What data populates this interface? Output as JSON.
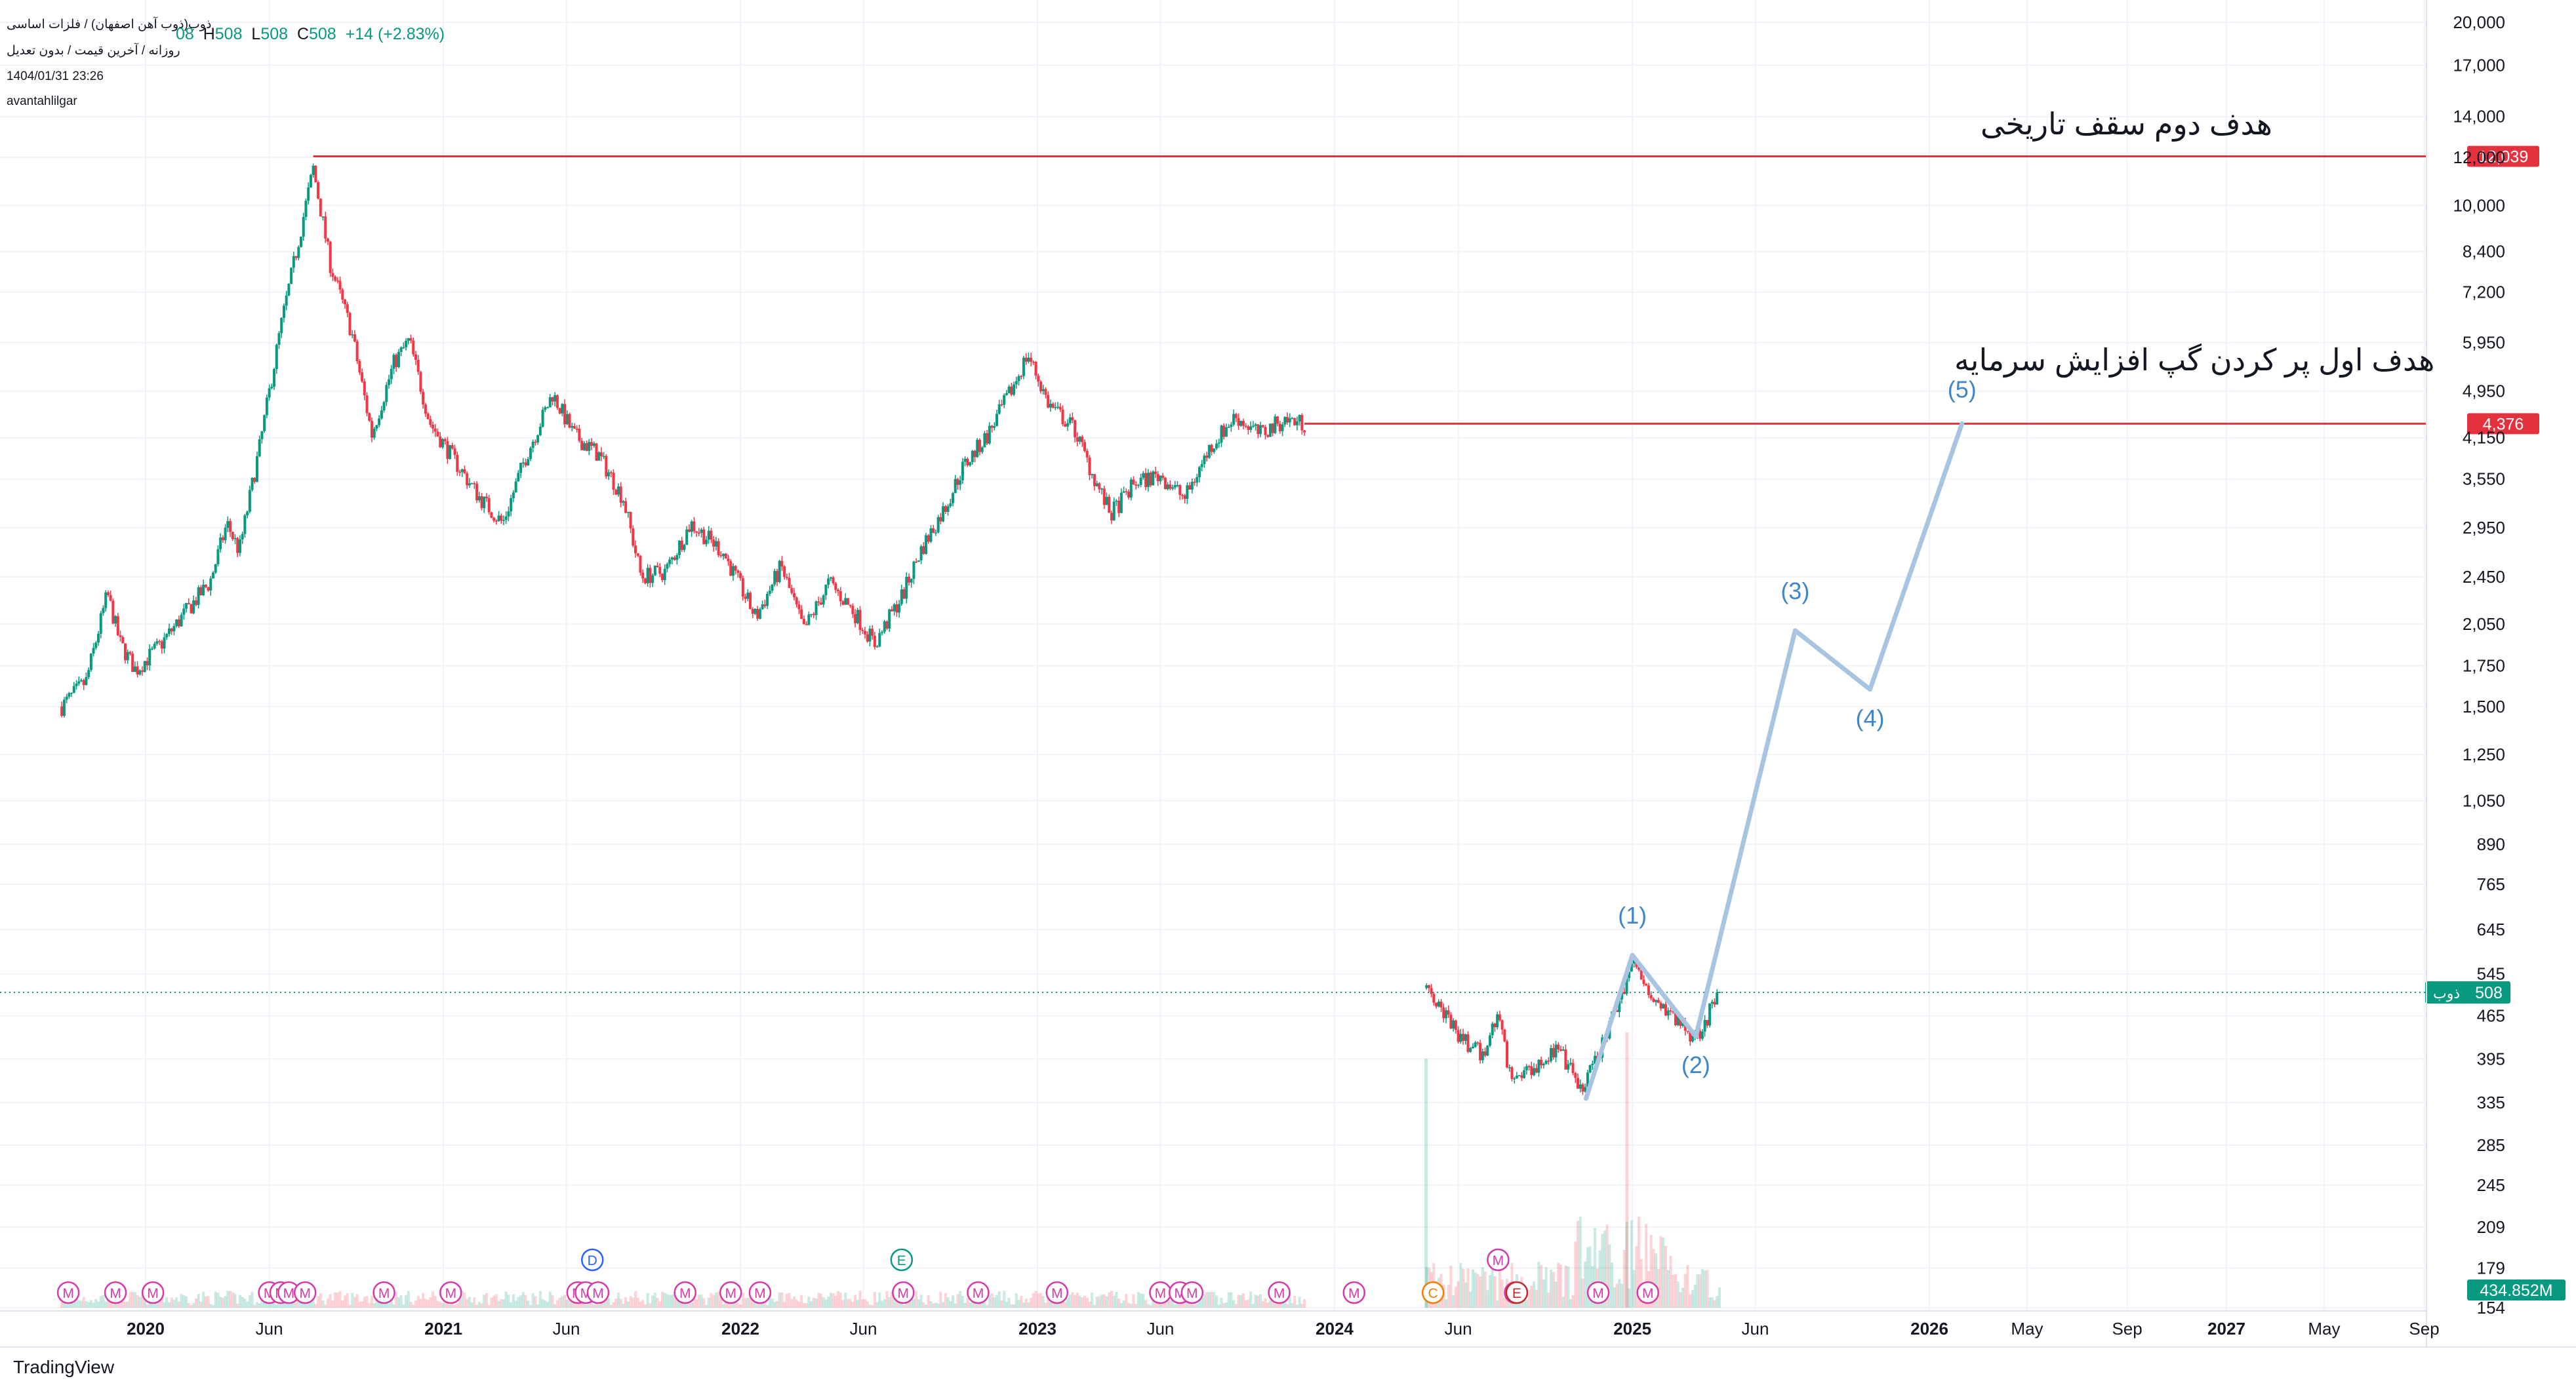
{
  "header": {
    "symbol_title": "ذوب(ذوب آهن اصفهان) / فلزات اساسی",
    "subtitle": "روزانه / آخرین قیمت / بدون تعدیل",
    "datetime": "1404/01/31 23:26",
    "author": "avantahlilgar",
    "ohlc": {
      "o_tail": "08",
      "h_label": "H",
      "h": "508",
      "l_label": "L",
      "l": "508",
      "c_label": "C",
      "c": "508",
      "change": "+14 (+2.83%)"
    }
  },
  "annotations": {
    "second_target": "هدف دوم سقف تاریخی",
    "first_target": "هدف اول پر کردن گپ افزایش سرمایه"
  },
  "branding": {
    "logo": "TradingView"
  },
  "colors": {
    "up": "#089981",
    "down": "#f23645",
    "target_line": "#e3323e",
    "wave": "#a7c5e0",
    "wave_text": "#3f86c8",
    "event_m": "#d63aa8"
  },
  "chart_data": {
    "type": "line",
    "scale": "log",
    "title": "",
    "x_ticks": [
      "2020",
      "Jun",
      "2021",
      "Jun",
      "2022",
      "Jun",
      "2023",
      "Jun",
      "2024",
      "Jun",
      "2025",
      "Jun",
      "2026",
      "May",
      "Sep",
      "2027",
      "May",
      "Sep"
    ],
    "y_ticks": [
      "20,000",
      "17,000",
      "14,000",
      "12,000",
      "10,000",
      "8,400",
      "7,200",
      "5,950",
      "4,950",
      "4,150",
      "3,550",
      "2,950",
      "2,450",
      "2,050",
      "1,750",
      "1,500",
      "1,250",
      "1,050",
      "890",
      "765",
      "645",
      "545",
      "465",
      "395",
      "335",
      "285",
      "245",
      "209",
      "179",
      "154"
    ],
    "ylim": [
      154,
      20000
    ],
    "price_series": {
      "name": "ذوب",
      "points": [
        [
          "2019-09-20",
          1500
        ],
        [
          "2019-10-20",
          1650
        ],
        [
          "2019-11-15",
          2300
        ],
        [
          "2019-12-01",
          1900
        ],
        [
          "2019-12-20",
          1720
        ],
        [
          "2020-01-20",
          1900
        ],
        [
          "2020-02-20",
          2150
        ],
        [
          "2020-03-20",
          2400
        ],
        [
          "2020-04-10",
          3000
        ],
        [
          "2020-04-25",
          2700
        ],
        [
          "2020-05-20",
          4000
        ],
        [
          "2020-06-15",
          6300
        ],
        [
          "2020-07-05",
          8500
        ],
        [
          "2020-07-25",
          11500
        ],
        [
          "2020-08-15",
          8000
        ],
        [
          "2020-09-10",
          6200
        ],
        [
          "2020-10-05",
          4200
        ],
        [
          "2020-11-01",
          5500
        ],
        [
          "2020-11-20",
          6000
        ],
        [
          "2020-12-15",
          4400
        ],
        [
          "2021-01-15",
          3800
        ],
        [
          "2021-02-15",
          3300
        ],
        [
          "2021-03-15",
          3000
        ],
        [
          "2021-04-10",
          3800
        ],
        [
          "2021-05-15",
          4900
        ],
        [
          "2021-06-10",
          4200
        ],
        [
          "2021-07-10",
          3900
        ],
        [
          "2021-08-10",
          3300
        ],
        [
          "2021-09-01",
          2450
        ],
        [
          "2021-10-01",
          2500
        ],
        [
          "2021-11-01",
          3000
        ],
        [
          "2021-12-10",
          2700
        ],
        [
          "2022-01-20",
          2100
        ],
        [
          "2022-02-20",
          2550
        ],
        [
          "2022-03-20",
          2000
        ],
        [
          "2022-04-20",
          2400
        ],
        [
          "2022-05-20",
          2150
        ],
        [
          "2022-06-15",
          1900
        ],
        [
          "2022-07-20",
          2300
        ],
        [
          "2022-08-10",
          2700
        ],
        [
          "2022-09-10",
          3200
        ],
        [
          "2022-10-01",
          3700
        ],
        [
          "2022-11-01",
          4200
        ],
        [
          "2022-12-01",
          5000
        ],
        [
          "2022-12-20",
          5700
        ],
        [
          "2023-01-15",
          4700
        ],
        [
          "2023-02-15",
          4300
        ],
        [
          "2023-03-10",
          3600
        ],
        [
          "2023-04-01",
          3100
        ],
        [
          "2023-05-01",
          3500
        ],
        [
          "2023-06-01",
          3600
        ],
        [
          "2023-07-01",
          3300
        ],
        [
          "2023-08-01",
          4000
        ],
        [
          "2023-09-01",
          4500
        ],
        [
          "2023-10-01",
          4200
        ],
        [
          "2023-11-01",
          4450
        ],
        [
          "2023-11-25",
          4376
        ],
        [
          "2024-04-22",
          540
        ],
        [
          "2024-05-10",
          480
        ],
        [
          "2024-06-01",
          430
        ],
        [
          "2024-07-01",
          400
        ],
        [
          "2024-07-20",
          470
        ],
        [
          "2024-08-05",
          365
        ],
        [
          "2024-09-01",
          385
        ],
        [
          "2024-10-01",
          410
        ],
        [
          "2024-11-01",
          350
        ],
        [
          "2024-11-20",
          400
        ],
        [
          "2024-12-10",
          470
        ],
        [
          "2025-01-01",
          570
        ],
        [
          "2025-01-20",
          520
        ],
        [
          "2025-02-10",
          480
        ],
        [
          "2025-03-01",
          450
        ],
        [
          "2025-03-20",
          430
        ],
        [
          "2025-04-20",
          508
        ]
      ]
    },
    "volume_series": {
      "name": "Volume",
      "last_value": "434.852M"
    },
    "target_lines": [
      {
        "value": 12039,
        "label": "12,039",
        "from": "2020-07-25",
        "to": "2027-12-01"
      },
      {
        "value": 4376,
        "label": "4,376",
        "from": "2023-11-25",
        "to": "2027-12-01"
      }
    ],
    "last_price_line": {
      "value": 508,
      "label": "508",
      "name": "ذوب"
    },
    "elliott_wave": {
      "points": [
        [
          "2024-11-05",
          340
        ],
        [
          "2025-01-01",
          585
        ],
        [
          "2025-03-20",
          430
        ],
        [
          "2025-07-20",
          2000
        ],
        [
          "2025-10-20",
          1600
        ],
        [
          "2026-02-10",
          4376
        ]
      ],
      "labels": [
        "(1)",
        "(2)",
        "(3)",
        "(4)",
        "(5)"
      ]
    },
    "event_markers": [
      {
        "date": "2019-09-28",
        "text": "M"
      },
      {
        "date": "2019-11-25",
        "text": "M"
      },
      {
        "date": "2020-01-10",
        "text": "M"
      },
      {
        "date": "2020-06-01",
        "text": "M"
      },
      {
        "date": "2020-06-15",
        "text": "M"
      },
      {
        "date": "2020-06-25",
        "text": "M"
      },
      {
        "date": "2020-07-15",
        "text": "M"
      },
      {
        "date": "2020-10-20",
        "text": "M"
      },
      {
        "date": "2021-01-10",
        "text": "M"
      },
      {
        "date": "2021-06-15",
        "text": "M"
      },
      {
        "date": "2021-06-25",
        "text": "M"
      },
      {
        "date": "2021-07-10",
        "text": "M"
      },
      {
        "date": "2021-07-03",
        "text": "D"
      },
      {
        "date": "2021-10-25",
        "text": "M"
      },
      {
        "date": "2021-12-20",
        "text": "M"
      },
      {
        "date": "2022-01-25",
        "text": "M"
      },
      {
        "date": "2022-07-20",
        "text": "M"
      },
      {
        "date": "2022-07-18",
        "text": "E"
      },
      {
        "date": "2022-10-20",
        "text": "M"
      },
      {
        "date": "2023-01-25",
        "text": "M"
      },
      {
        "date": "2023-06-01",
        "text": "M"
      },
      {
        "date": "2023-06-25",
        "text": "M"
      },
      {
        "date": "2023-07-10",
        "text": "M"
      },
      {
        "date": "2023-10-25",
        "text": "M"
      },
      {
        "date": "2024-01-25",
        "text": "M"
      },
      {
        "date": "2024-05-01",
        "text": "C"
      },
      {
        "date": "2024-07-20",
        "text": "M"
      },
      {
        "date": "2024-08-10",
        "text": "M"
      },
      {
        "date": "2024-08-12",
        "text": "E"
      },
      {
        "date": "2024-11-20",
        "text": "M"
      },
      {
        "date": "2025-01-20",
        "text": "M"
      }
    ],
    "grid": true,
    "legend": "top-left"
  }
}
